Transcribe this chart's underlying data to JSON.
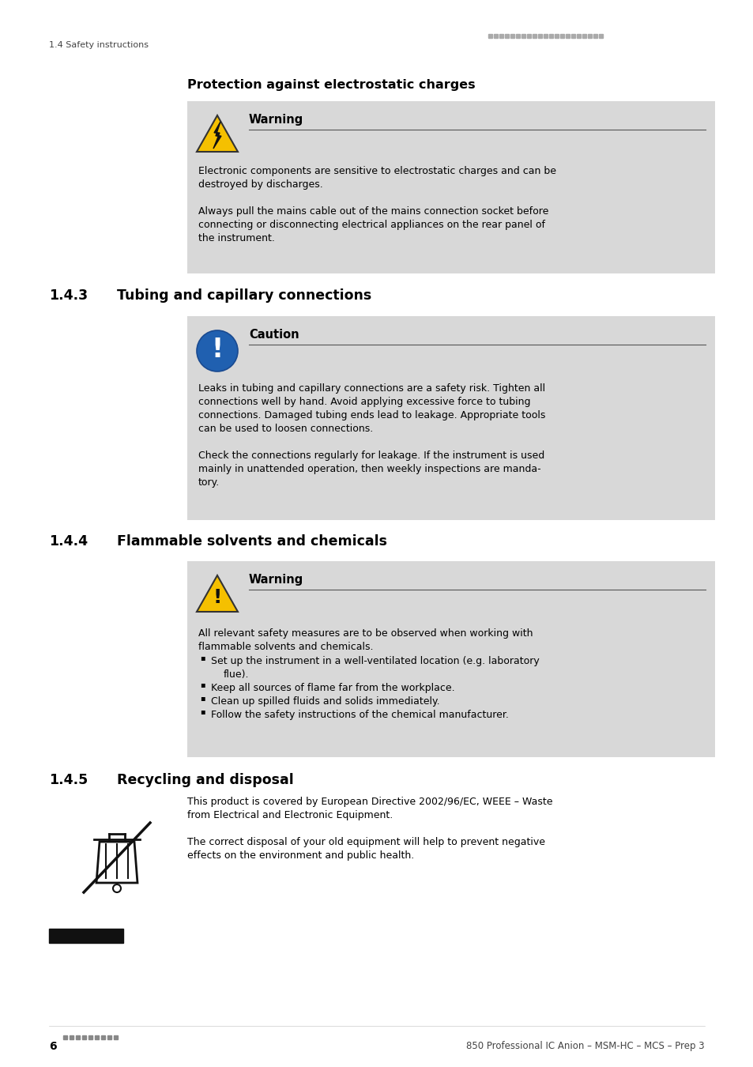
{
  "bg_color": "#ffffff",
  "header_left": "1.4 Safety instructions",
  "header_dots_color": "#aaaaaa",
  "footer_left_num": "6",
  "footer_right": "850 Professional IC Anion – MSM-HC – MCS – Prep 3",
  "footer_dots_color": "#888888",
  "section_title_1": "Protection against electrostatic charges",
  "box1_title": "Warning",
  "box1_line1": "Electronic components are sensitive to electrostatic charges and can be",
  "box1_line2": "destroyed by discharges.",
  "box1_line3": "Always pull the mains cable out of the mains connection socket before",
  "box1_line4": "connecting or disconnecting electrical appliances on the rear panel of",
  "box1_line5": "the instrument.",
  "box_bg": "#d8d8d8",
  "box_edge": "#bbbbbb",
  "section_143": "1.4.3",
  "section_143_title": "Tubing and capillary connections",
  "box2_title": "Caution",
  "box2_line1": "Leaks in tubing and capillary connections are a safety risk. Tighten all",
  "box2_line2": "connections well by hand. Avoid applying excessive force to tubing",
  "box2_line3": "connections. Damaged tubing ends lead to leakage. Appropriate tools",
  "box2_line4": "can be used to loosen connections.",
  "box2_line5": "Check the connections regularly for leakage. If the instrument is used",
  "box2_line6": "mainly in unattended operation, then weekly inspections are manda-",
  "box2_line7": "tory.",
  "section_144": "1.4.4",
  "section_144_title": "Flammable solvents and chemicals",
  "box3_title": "Warning",
  "box3_line1": "All relevant safety measures are to be observed when working with",
  "box3_line2": "flammable solvents and chemicals.",
  "box3_b1a": "Set up the instrument in a well-ventilated location (e.g. laboratory",
  "box3_b1b": "flue).",
  "box3_b2": "Keep all sources of flame far from the workplace.",
  "box3_b3": "Clean up spilled fluids and solids immediately.",
  "box3_b4": "Follow the safety instructions of the chemical manufacturer.",
  "section_145": "1.4.5",
  "section_145_title": "Recycling and disposal",
  "recycling_line1": "This product is covered by European Directive 2002/96/EC, WEEE – Waste",
  "recycling_line2": "from Electrical and Electronic Equipment.",
  "recycling_line3": "The correct disposal of your old equipment will help to prevent negative",
  "recycling_line4": "effects on the environment and public health.",
  "warn_triangle_color": "#f5c000",
  "warn_triangle_edge": "#333333",
  "caution_circle_color": "#2060b0",
  "icon_text_color": "#ffffff",
  "text_color": "#000000",
  "section_num_color": "#000000",
  "body_font_size": 9.0,
  "section_font_size": 12.5,
  "header_font_size": 8.0,
  "footer_font_size": 8.5
}
